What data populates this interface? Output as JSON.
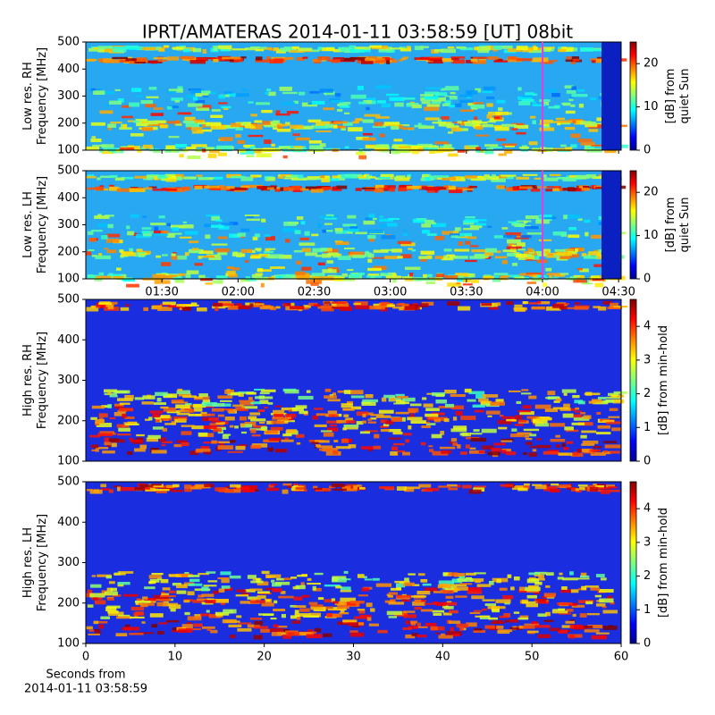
{
  "title": "IPRT/AMATERAS 2014-01-11 03:58:59 [UT]   08bit",
  "chart_data": [
    {
      "type": "heatmap",
      "ylabel_lines": [
        "Low res. RH",
        "Frequency [MHz]"
      ],
      "ylim": [
        100,
        500
      ],
      "yticks": [
        100,
        200,
        300,
        400,
        500
      ],
      "xlim": [
        60,
        271
      ],
      "marker_x": 240,
      "marker_color": "#e040e0",
      "colorbar": {
        "label_lines": [
          "[dB] from",
          "quiet Sun"
        ],
        "lim": [
          0,
          25
        ],
        "ticks": [
          0,
          10,
          20
        ],
        "colormap": "jet"
      }
    },
    {
      "type": "heatmap",
      "ylabel_lines": [
        "Low res. LH",
        "Frequency [MHz]"
      ],
      "ylim": [
        100,
        500
      ],
      "yticks": [
        100,
        200,
        300,
        400,
        500
      ],
      "xlim": [
        60,
        271
      ],
      "marker_x": 240,
      "marker_color": "#e040e0",
      "xticks": [
        {
          "value": 90,
          "label": "01:30"
        },
        {
          "value": 120,
          "label": "02:00"
        },
        {
          "value": 150,
          "label": "02:30"
        },
        {
          "value": 180,
          "label": "03:00"
        },
        {
          "value": 210,
          "label": "03:30"
        },
        {
          "value": 240,
          "label": "04:00"
        },
        {
          "value": 270,
          "label": "04:30"
        }
      ],
      "colorbar": {
        "label_lines": [
          "[dB] from",
          "quiet Sun"
        ],
        "lim": [
          0,
          25
        ],
        "ticks": [
          0,
          10,
          20
        ],
        "colormap": "jet"
      }
    },
    {
      "type": "heatmap",
      "ylabel_lines": [
        "High res. RH",
        "Frequency [MHz]"
      ],
      "ylim": [
        100,
        500
      ],
      "yticks": [
        100,
        200,
        300,
        400,
        500
      ],
      "xlim": [
        0,
        60
      ],
      "colorbar": {
        "label_lines": [
          "[dB] from min-hold"
        ],
        "lim": [
          0,
          4.8
        ],
        "ticks": [
          0,
          1,
          2,
          3,
          4
        ],
        "colormap": "jet"
      }
    },
    {
      "type": "heatmap",
      "ylabel_lines": [
        "High res. LH",
        "Frequency [MHz]"
      ],
      "ylim": [
        100,
        500
      ],
      "yticks": [
        100,
        200,
        300,
        400,
        500
      ],
      "xlim": [
        0,
        60
      ],
      "xticks": [
        0,
        10,
        20,
        30,
        40,
        50,
        60
      ],
      "xlabel_lines": [
        "Seconds from",
        "2014-01-11 03:58:59"
      ],
      "colorbar": {
        "label_lines": [
          "[dB] from min-hold"
        ],
        "lim": [
          0,
          4.8
        ],
        "ticks": [
          0,
          1,
          2,
          3,
          4
        ],
        "colormap": "jet"
      }
    }
  ]
}
